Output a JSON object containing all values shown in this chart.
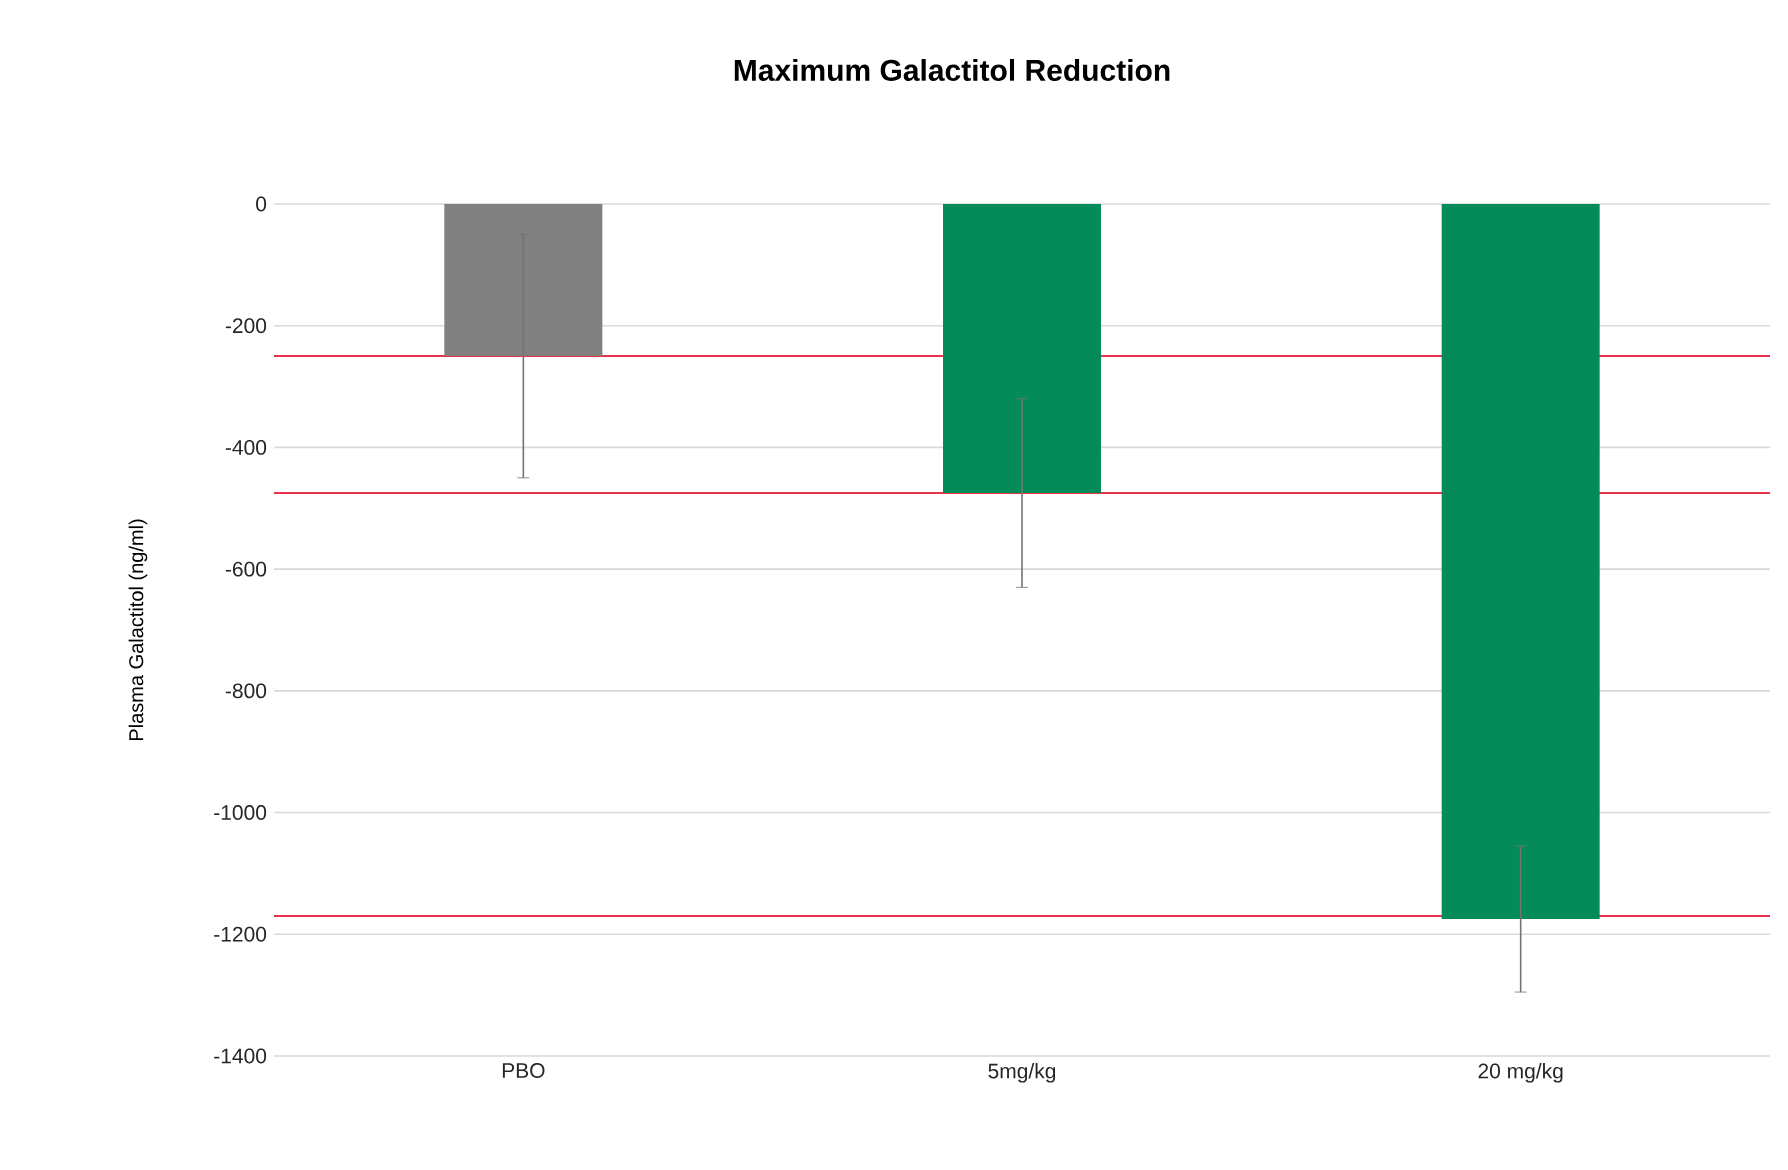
{
  "chart_data": {
    "type": "bar",
    "title": "Maximum Galactitol Reduction",
    "ylabel": "Plasma Galactitol (ng/ml)",
    "categories": [
      "PBO",
      "5mg/kg",
      "20 mg/kg"
    ],
    "values": [
      -250,
      -475,
      -1175
    ],
    "errors": [
      200,
      155,
      120
    ],
    "colors": [
      "#808080",
      "#058a5a",
      "#058a5a"
    ],
    "ylim": [
      -1400,
      0
    ],
    "yticks": [
      -1400,
      -1200,
      -1000,
      -800,
      -600,
      -400,
      -200,
      0
    ],
    "grid": "y",
    "ref_lines": [
      {
        "axis": "y",
        "value": -250,
        "color": "#e8334a"
      },
      {
        "axis": "y",
        "value": -475,
        "color": "#e8334a"
      },
      {
        "axis": "y",
        "value": -1170,
        "color": "#e8334a"
      }
    ]
  }
}
